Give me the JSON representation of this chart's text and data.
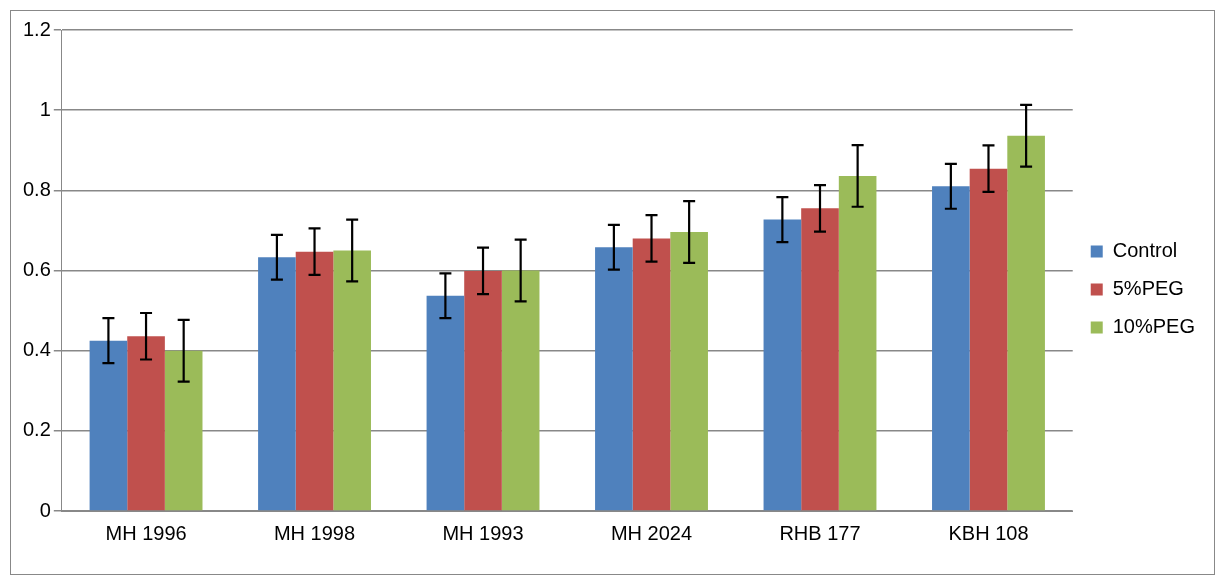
{
  "chart_data": {
    "type": "bar",
    "categories": [
      "MH 1996",
      "MH 1998",
      "MH 1993",
      "MH 2024",
      "RHB 177",
      "KBH 108"
    ],
    "series": [
      {
        "name": "Control",
        "color": "#4f81bd",
        "values": [
          0.425,
          0.633,
          0.537,
          0.658,
          0.727,
          0.81
        ],
        "errors": [
          0.056,
          0.056,
          0.056,
          0.056,
          0.056,
          0.056
        ]
      },
      {
        "name": "5%PEG",
        "color": "#c0504d",
        "values": [
          0.436,
          0.647,
          0.599,
          0.68,
          0.755,
          0.854
        ],
        "errors": [
          0.058,
          0.058,
          0.058,
          0.058,
          0.058,
          0.058
        ]
      },
      {
        "name": "10%PEG",
        "color": "#9bbb59",
        "values": [
          0.4,
          0.65,
          0.6,
          0.696,
          0.836,
          0.936
        ],
        "errors": [
          0.077,
          0.077,
          0.077,
          0.077,
          0.077,
          0.077
        ]
      }
    ],
    "ylim": [
      0,
      1.2
    ],
    "yticks": [
      0,
      0.2,
      0.4,
      0.6,
      0.8,
      1,
      1.2
    ],
    "grid": "y",
    "legend": "right"
  }
}
